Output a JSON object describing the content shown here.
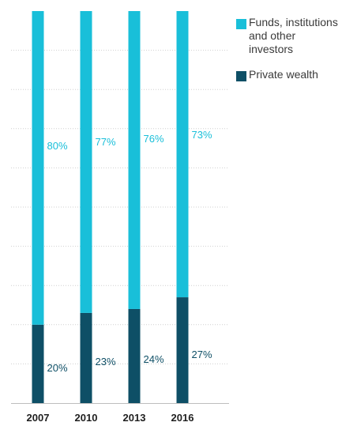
{
  "chart_data": {
    "type": "bar",
    "stacked": true,
    "percent": true,
    "categories": [
      "2007",
      "2010",
      "2013",
      "2016"
    ],
    "series": [
      {
        "name": "Private wealth",
        "color": "#0e4f66",
        "values": [
          20,
          23,
          24,
          27
        ],
        "labels": [
          "20%",
          "23%",
          "24%",
          "27%"
        ]
      },
      {
        "name": "Funds, institutions and other investors",
        "color": "#19bfd9",
        "values": [
          80,
          77,
          76,
          73
        ],
        "labels": [
          "80%",
          "77%",
          "76%",
          "73%"
        ]
      }
    ],
    "ylim": [
      0,
      100
    ],
    "grid": true,
    "legend_position": "top-right"
  },
  "legend": {
    "items": [
      {
        "label_lines": [
          "Funds, institutions",
          "and other investors"
        ],
        "color": "#19bfd9"
      },
      {
        "label_lines": [
          "Private wealth"
        ],
        "color": "#0e4f66"
      }
    ]
  }
}
